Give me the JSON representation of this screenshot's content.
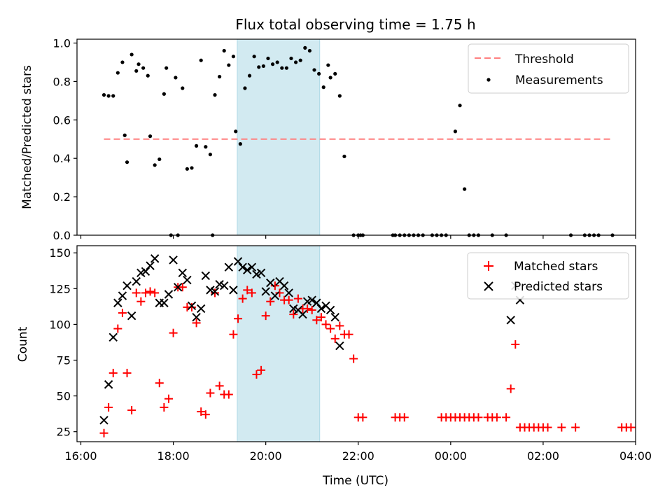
{
  "chart_data": [
    {
      "type": "scatter",
      "title": "Flux total observing time = 1.75 h",
      "ylabel": "Matched/Predicted stars",
      "xlabel": "",
      "xlim": [
        "2021-01-01T15:55",
        "2021-01-02T04:00"
      ],
      "ylim": [
        0,
        1.02
      ],
      "yticks": [
        "0.0",
        "0.2",
        "0.4",
        "0.6",
        "0.8",
        "1.0"
      ],
      "legend": {
        "position": "top-right",
        "entries": [
          "Threshold",
          "Measurements"
        ]
      },
      "grid": false,
      "threshold": {
        "name": "Threshold",
        "value": 0.5,
        "x_start": "16:30",
        "x_end": "03:30",
        "color": "#ff7f7f",
        "style": "dashed"
      },
      "shaded_span": {
        "start": "19:23",
        "end": "21:10",
        "color": "#add8e6"
      },
      "series": [
        {
          "name": "Measurements",
          "color": "#000000",
          "points": [
            [
              "16:30",
              0.73
            ],
            [
              "16:36",
              0.725
            ],
            [
              "16:42",
              0.725
            ],
            [
              "16:48",
              0.845
            ],
            [
              "16:54",
              0.9
            ],
            [
              "16:57",
              0.52
            ],
            [
              "17:00",
              0.38
            ],
            [
              "17:06",
              0.94
            ],
            [
              "17:12",
              0.855
            ],
            [
              "17:15",
              0.89
            ],
            [
              "17:21",
              0.87
            ],
            [
              "17:27",
              0.83
            ],
            [
              "17:30",
              0.515
            ],
            [
              "17:36",
              0.365
            ],
            [
              "17:42",
              0.395
            ],
            [
              "17:48",
              0.735
            ],
            [
              "17:51",
              0.87
            ],
            [
              "17:57",
              0.0
            ],
            [
              "18:03",
              0.82
            ],
            [
              "18:06",
              0.0
            ],
            [
              "18:12",
              0.765
            ],
            [
              "18:18",
              0.345
            ],
            [
              "18:24",
              0.35
            ],
            [
              "18:30",
              0.465
            ],
            [
              "18:36",
              0.91
            ],
            [
              "18:42",
              0.46
            ],
            [
              "18:48",
              0.42
            ],
            [
              "18:51",
              0.0
            ],
            [
              "18:54",
              0.73
            ],
            [
              "19:00",
              0.825
            ],
            [
              "19:06",
              0.96
            ],
            [
              "19:12",
              0.885
            ],
            [
              "19:18",
              0.93
            ],
            [
              "19:21",
              0.54
            ],
            [
              "19:27",
              0.475
            ],
            [
              "19:33",
              0.765
            ],
            [
              "19:39",
              0.83
            ],
            [
              "19:45",
              0.93
            ],
            [
              "19:51",
              0.875
            ],
            [
              "19:57",
              0.88
            ],
            [
              "20:03",
              0.92
            ],
            [
              "20:09",
              0.89
            ],
            [
              "20:15",
              0.9
            ],
            [
              "20:21",
              0.87
            ],
            [
              "20:27",
              0.87
            ],
            [
              "20:33",
              0.92
            ],
            [
              "20:39",
              0.9
            ],
            [
              "20:45",
              0.91
            ],
            [
              "20:51",
              0.975
            ],
            [
              "20:57",
              0.96
            ],
            [
              "21:03",
              0.86
            ],
            [
              "21:09",
              0.84
            ],
            [
              "21:15",
              0.77
            ],
            [
              "21:21",
              0.885
            ],
            [
              "21:24",
              0.82
            ],
            [
              "21:30",
              0.84
            ],
            [
              "21:36",
              0.725
            ],
            [
              "21:42",
              0.41
            ],
            [
              "21:54",
              0.0
            ],
            [
              "22:00",
              0.0
            ],
            [
              "22:03",
              0.0
            ],
            [
              "22:06",
              0.0
            ],
            [
              "22:45",
              0.0
            ],
            [
              "22:48",
              0.0
            ],
            [
              "22:54",
              0.0
            ],
            [
              "23:00",
              0.0
            ],
            [
              "23:06",
              0.0
            ],
            [
              "23:12",
              0.0
            ],
            [
              "23:18",
              0.0
            ],
            [
              "23:24",
              0.0
            ],
            [
              "23:36",
              0.0
            ],
            [
              "23:42",
              0.0
            ],
            [
              "23:48",
              0.0
            ],
            [
              "23:54",
              0.0
            ],
            [
              "00:06",
              0.54
            ],
            [
              "00:12",
              0.675
            ],
            [
              "00:18",
              0.24
            ],
            [
              "00:24",
              0.0
            ],
            [
              "00:30",
              0.0
            ],
            [
              "00:36",
              0.0
            ],
            [
              "00:54",
              0.0
            ],
            [
              "01:12",
              0.0
            ],
            [
              "02:36",
              0.0
            ],
            [
              "02:54",
              0.0
            ],
            [
              "03:00",
              0.0
            ],
            [
              "03:06",
              0.0
            ],
            [
              "03:12",
              0.0
            ],
            [
              "03:30",
              0.0
            ]
          ]
        }
      ]
    },
    {
      "type": "scatter",
      "title": "",
      "ylabel": "Count",
      "xlabel": "Time (UTC)",
      "xlim": [
        "2021-01-01T15:55",
        "2021-01-02T04:00"
      ],
      "ylim": [
        18,
        155
      ],
      "yticks": [
        "25",
        "50",
        "75",
        "100",
        "125",
        "150"
      ],
      "xticks": [
        "16:00",
        "18:00",
        "20:00",
        "22:00",
        "00:00",
        "02:00",
        "04:00"
      ],
      "legend": {
        "position": "top-right",
        "entries": [
          "Matched stars",
          "Predicted stars"
        ]
      },
      "grid": false,
      "shaded_span": {
        "start": "19:23",
        "end": "21:10",
        "color": "#add8e6"
      },
      "series": [
        {
          "name": "Matched stars",
          "marker": "plus",
          "color": "#ff0000",
          "points": [
            [
              "16:30",
              24
            ],
            [
              "16:36",
              42
            ],
            [
              "16:42",
              66
            ],
            [
              "16:48",
              97
            ],
            [
              "16:54",
              108
            ],
            [
              "17:00",
              66
            ],
            [
              "17:06",
              40
            ],
            [
              "17:12",
              122
            ],
            [
              "17:18",
              116
            ],
            [
              "17:24",
              122
            ],
            [
              "17:30",
              123
            ],
            [
              "17:36",
              122
            ],
            [
              "17:42",
              59
            ],
            [
              "17:48",
              42
            ],
            [
              "17:54",
              48
            ],
            [
              "18:00",
              94
            ],
            [
              "18:06",
              126
            ],
            [
              "18:12",
              126
            ],
            [
              "18:18",
              112
            ],
            [
              "18:24",
              112
            ],
            [
              "18:30",
              101
            ],
            [
              "18:36",
              39
            ],
            [
              "18:42",
              37
            ],
            [
              "18:48",
              52
            ],
            [
              "18:54",
              122
            ],
            [
              "19:00",
              57
            ],
            [
              "19:06",
              51
            ],
            [
              "19:12",
              51
            ],
            [
              "19:18",
              93
            ],
            [
              "19:24",
              104
            ],
            [
              "19:30",
              118
            ],
            [
              "19:36",
              124
            ],
            [
              "19:42",
              122
            ],
            [
              "19:48",
              65
            ],
            [
              "19:54",
              68
            ],
            [
              "20:00",
              106
            ],
            [
              "20:06",
              116
            ],
            [
              "20:12",
              127
            ],
            [
              "20:18",
              122
            ],
            [
              "20:24",
              117
            ],
            [
              "20:30",
              117
            ],
            [
              "20:36",
              107
            ],
            [
              "20:42",
              118
            ],
            [
              "20:48",
              111
            ],
            [
              "20:54",
              111
            ],
            [
              "21:00",
              110
            ],
            [
              "21:06",
              103
            ],
            [
              "21:12",
              105
            ],
            [
              "21:18",
              100
            ],
            [
              "21:24",
              97
            ],
            [
              "21:30",
              90
            ],
            [
              "21:36",
              99
            ],
            [
              "21:42",
              93
            ],
            [
              "21:48",
              93
            ],
            [
              "21:54",
              76
            ],
            [
              "22:00",
              35
            ],
            [
              "22:06",
              35
            ],
            [
              "22:48",
              35
            ],
            [
              "22:54",
              35
            ],
            [
              "23:00",
              35
            ],
            [
              "23:48",
              35
            ],
            [
              "23:54",
              35
            ],
            [
              "00:00",
              35
            ],
            [
              "00:06",
              35
            ],
            [
              "00:12",
              35
            ],
            [
              "00:18",
              35
            ],
            [
              "00:24",
              35
            ],
            [
              "00:30",
              35
            ],
            [
              "00:36",
              35
            ],
            [
              "00:48",
              35
            ],
            [
              "00:54",
              35
            ],
            [
              "01:00",
              35
            ],
            [
              "01:12",
              35
            ],
            [
              "01:18",
              55
            ],
            [
              "01:24",
              86
            ],
            [
              "01:30",
              28
            ],
            [
              "01:36",
              28
            ],
            [
              "01:42",
              28
            ],
            [
              "01:48",
              28
            ],
            [
              "01:54",
              28
            ],
            [
              "02:00",
              28
            ],
            [
              "02:06",
              28
            ],
            [
              "02:24",
              28
            ],
            [
              "02:42",
              28
            ],
            [
              "03:42",
              28
            ],
            [
              "03:48",
              28
            ],
            [
              "03:54",
              28
            ]
          ]
        },
        {
          "name": "Predicted stars",
          "marker": "cross",
          "color": "#000000",
          "points": [
            [
              "16:30",
              33
            ],
            [
              "16:36",
              58
            ],
            [
              "16:42",
              91
            ],
            [
              "16:48",
              115
            ],
            [
              "16:54",
              120
            ],
            [
              "17:00",
              127
            ],
            [
              "17:06",
              106
            ],
            [
              "17:12",
              130
            ],
            [
              "17:18",
              136
            ],
            [
              "17:24",
              137
            ],
            [
              "17:30",
              141
            ],
            [
              "17:36",
              146
            ],
            [
              "17:42",
              115
            ],
            [
              "17:48",
              115
            ],
            [
              "17:54",
              121
            ],
            [
              "18:00",
              145
            ],
            [
              "18:06",
              126
            ],
            [
              "18:12",
              136
            ],
            [
              "18:18",
              131
            ],
            [
              "18:24",
              113
            ],
            [
              "18:30",
              105
            ],
            [
              "18:36",
              111
            ],
            [
              "18:42",
              134
            ],
            [
              "18:48",
              124
            ],
            [
              "18:54",
              123
            ],
            [
              "19:00",
              128
            ],
            [
              "19:06",
              127
            ],
            [
              "19:12",
              140
            ],
            [
              "19:18",
              124
            ],
            [
              "19:24",
              144
            ],
            [
              "19:30",
              140
            ],
            [
              "19:36",
              138
            ],
            [
              "19:42",
              140
            ],
            [
              "19:48",
              135
            ],
            [
              "19:54",
              136
            ],
            [
              "20:00",
              123
            ],
            [
              "20:06",
              129
            ],
            [
              "20:12",
              120
            ],
            [
              "20:18",
              130
            ],
            [
              "20:24",
              127
            ],
            [
              "20:30",
              122
            ],
            [
              "20:36",
              111
            ],
            [
              "20:42",
              110
            ],
            [
              "20:48",
              107
            ],
            [
              "20:54",
              116
            ],
            [
              "21:00",
              117
            ],
            [
              "21:06",
              115
            ],
            [
              "21:12",
              111
            ],
            [
              "21:18",
              113
            ],
            [
              "21:24",
              110
            ],
            [
              "21:30",
              105
            ],
            [
              "21:36",
              85
            ],
            [
              "01:18",
              103
            ],
            [
              "01:24",
              127
            ],
            [
              "01:30",
              117
            ]
          ]
        }
      ]
    }
  ]
}
